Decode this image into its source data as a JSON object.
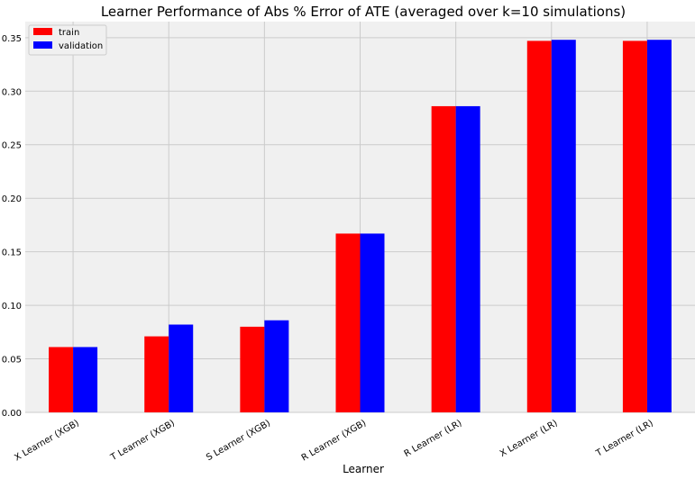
{
  "chart_data": {
    "type": "bar",
    "title": "Learner Performance of Abs % Error of ATE (averaged over k=10 simulations)",
    "xlabel": "Learner",
    "ylabel": "",
    "categories": [
      "X Learner (XGB)",
      "T Learner (XGB)",
      "S Learner (XGB)",
      "R Learner (XGB)",
      "R Learner (LR)",
      "X Learner (LR)",
      "T Learner (LR)"
    ],
    "series": [
      {
        "name": "train",
        "color": "#ff0000",
        "values": [
          0.061,
          0.071,
          0.08,
          0.167,
          0.286,
          0.347,
          0.347
        ]
      },
      {
        "name": "validation",
        "color": "#0000ff",
        "values": [
          0.061,
          0.082,
          0.086,
          0.167,
          0.286,
          0.348,
          0.348
        ]
      }
    ],
    "ylim": [
      0,
      0.365
    ],
    "yticks": [
      "0.00",
      "0.05",
      "0.10",
      "0.15",
      "0.20",
      "0.25",
      "0.30",
      "0.35"
    ],
    "legend": "top-left",
    "grid": true
  }
}
